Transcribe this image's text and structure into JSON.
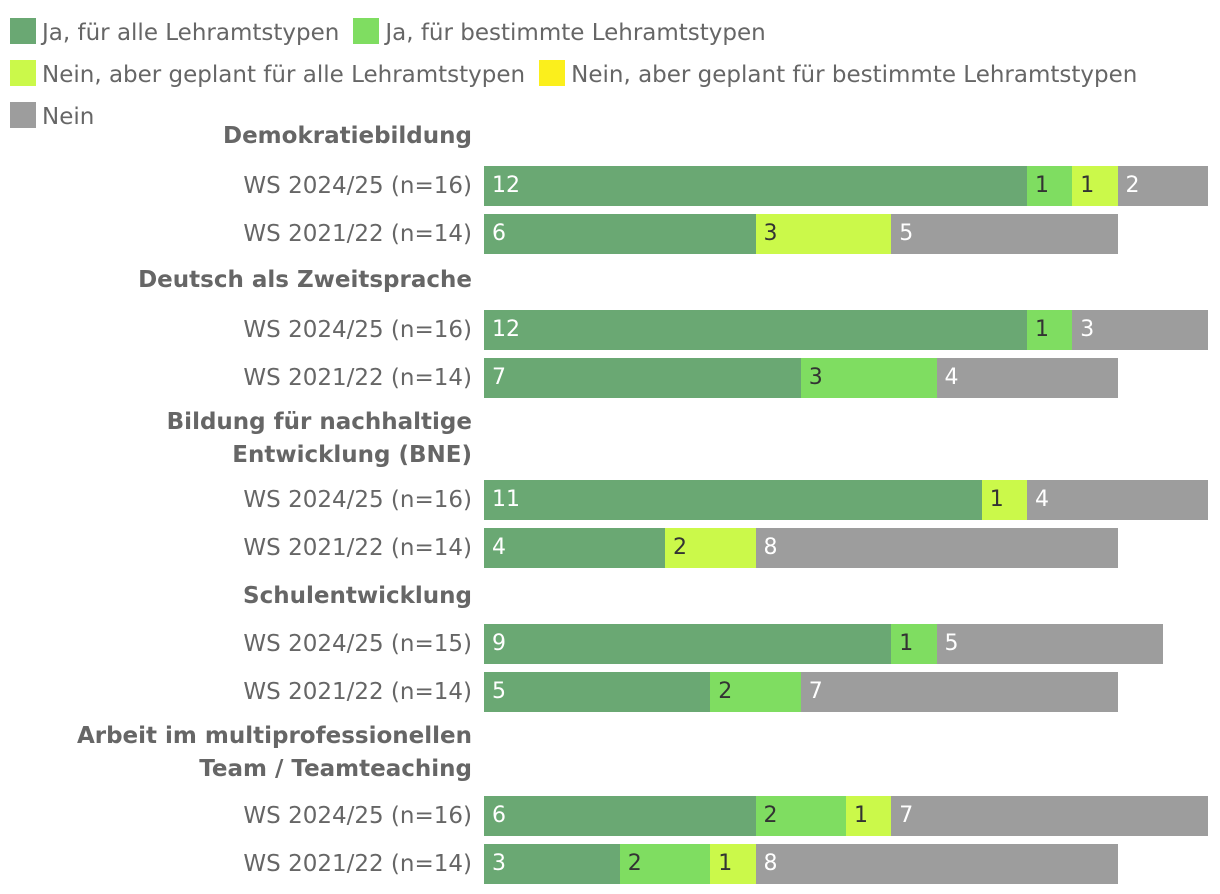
{
  "chart_data": {
    "type": "bar",
    "orientation": "horizontal",
    "stacked": true,
    "legend_position": "top",
    "grid": false,
    "xlim": [
      0,
      16
    ],
    "legend": [
      {
        "key": "ja_alle",
        "label": "Ja, für alle Lehramtstypen",
        "color": "#6aa873",
        "text_color": "#ffffff"
      },
      {
        "key": "ja_bestimmte",
        "label": "Ja, für bestimmte Lehramtstypen",
        "color": "#7fdd61",
        "text_color": "#333333"
      },
      {
        "key": "geplant_alle",
        "label": "Nein, aber geplant für alle Lehramtstypen",
        "color": "#cbf94a",
        "text_color": "#333333"
      },
      {
        "key": "geplant_bestimmte",
        "label": "Nein, aber geplant für bestimmte Lehramtstypen",
        "color": "#fbef1c",
        "text_color": "#333333"
      },
      {
        "key": "nein",
        "label": "Nein",
        "color": "#9d9d9d",
        "text_color": "#ffffff"
      }
    ],
    "groups": [
      {
        "title": "Demokratiebildung",
        "rows": [
          {
            "label": "WS 2024/25 (n=16)",
            "values": [
              12,
              1,
              1,
              0,
              2
            ]
          },
          {
            "label": "WS 2021/22 (n=14)",
            "values": [
              6,
              0,
              3,
              0,
              5
            ]
          }
        ]
      },
      {
        "title": "Deutsch als Zweitsprache",
        "rows": [
          {
            "label": "WS 2024/25 (n=16)",
            "values": [
              12,
              1,
              0,
              0,
              3
            ]
          },
          {
            "label": "WS 2021/22 (n=14)",
            "values": [
              7,
              3,
              0,
              0,
              4
            ]
          }
        ]
      },
      {
        "title": "Bildung für nachhaltige Entwicklung (BNE)",
        "rows": [
          {
            "label": "WS 2024/25 (n=16)",
            "values": [
              11,
              0,
              1,
              0,
              4
            ]
          },
          {
            "label": "WS 2021/22 (n=14)",
            "values": [
              4,
              0,
              2,
              0,
              8
            ]
          }
        ]
      },
      {
        "title": "Schulentwicklung",
        "rows": [
          {
            "label": "WS 2024/25 (n=15)",
            "values": [
              9,
              1,
              0,
              0,
              5
            ]
          },
          {
            "label": "WS 2021/22 (n=14)",
            "values": [
              5,
              2,
              0,
              0,
              7
            ]
          }
        ]
      },
      {
        "title": "Arbeit im multiprofessionellen Team / Teamteaching",
        "rows": [
          {
            "label": "WS 2024/25 (n=16)",
            "values": [
              6,
              2,
              1,
              0,
              7
            ]
          },
          {
            "label": "WS 2021/22 (n=14)",
            "values": [
              3,
              2,
              1,
              0,
              8
            ]
          }
        ]
      }
    ]
  }
}
